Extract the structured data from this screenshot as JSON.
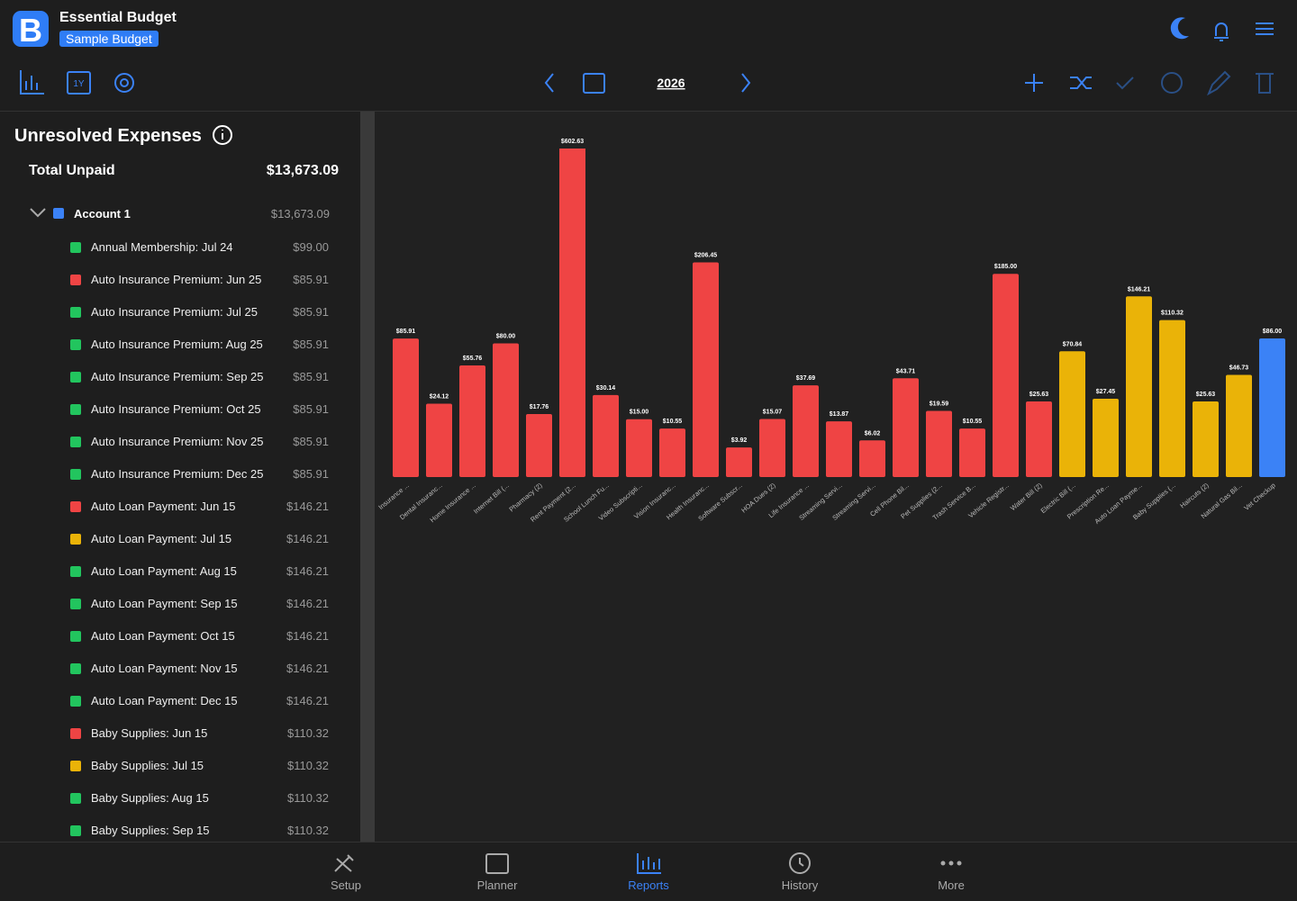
{
  "header": {
    "app_title": "Essential Budget",
    "budget_name": "Sample Budget"
  },
  "toolbar": {
    "range_label": "1Y",
    "year": "2026"
  },
  "sidebar": {
    "title": "Unresolved Expenses",
    "total_label": "Total Unpaid",
    "total_amount": "$13,673.09",
    "account": {
      "name": "Account 1",
      "amount": "$13,673.09"
    },
    "items": [
      {
        "name": "Annual Membership: Jul 24",
        "amount": "$99.00",
        "color": "#22c55e"
      },
      {
        "name": "Auto Insurance Premium: Jun 25",
        "amount": "$85.91",
        "color": "#ef4444"
      },
      {
        "name": "Auto Insurance Premium: Jul 25",
        "amount": "$85.91",
        "color": "#22c55e"
      },
      {
        "name": "Auto Insurance Premium: Aug 25",
        "amount": "$85.91",
        "color": "#22c55e"
      },
      {
        "name": "Auto Insurance Premium: Sep 25",
        "amount": "$85.91",
        "color": "#22c55e"
      },
      {
        "name": "Auto Insurance Premium: Oct 25",
        "amount": "$85.91",
        "color": "#22c55e"
      },
      {
        "name": "Auto Insurance Premium: Nov 25",
        "amount": "$85.91",
        "color": "#22c55e"
      },
      {
        "name": "Auto Insurance Premium: Dec 25",
        "amount": "$85.91",
        "color": "#22c55e"
      },
      {
        "name": "Auto Loan Payment: Jun 15",
        "amount": "$146.21",
        "color": "#ef4444"
      },
      {
        "name": "Auto Loan Payment: Jul 15",
        "amount": "$146.21",
        "color": "#eab308"
      },
      {
        "name": "Auto Loan Payment: Aug 15",
        "amount": "$146.21",
        "color": "#22c55e"
      },
      {
        "name": "Auto Loan Payment: Sep 15",
        "amount": "$146.21",
        "color": "#22c55e"
      },
      {
        "name": "Auto Loan Payment: Oct 15",
        "amount": "$146.21",
        "color": "#22c55e"
      },
      {
        "name": "Auto Loan Payment: Nov 15",
        "amount": "$146.21",
        "color": "#22c55e"
      },
      {
        "name": "Auto Loan Payment: Dec 15",
        "amount": "$146.21",
        "color": "#22c55e"
      },
      {
        "name": "Baby Supplies: Jun 15",
        "amount": "$110.32",
        "color": "#ef4444"
      },
      {
        "name": "Baby Supplies: Jul 15",
        "amount": "$110.32",
        "color": "#eab308"
      },
      {
        "name": "Baby Supplies: Aug 15",
        "amount": "$110.32",
        "color": "#22c55e"
      },
      {
        "name": "Baby Supplies: Sep 15",
        "amount": "$110.32",
        "color": "#22c55e"
      }
    ]
  },
  "chart_data": {
    "type": "bar",
    "scale": "sqrt",
    "categories": [
      "Insurance ...",
      "Dental Insuranc...",
      "Home Insurance ...",
      "Internet Bill (...",
      "Pharmacy (2)",
      "Rent Payment (2...",
      "School Lunch Fu...",
      "Video Subscripti...",
      "Vision Insuranc...",
      "Health Insuranc...",
      "Software Subscr...",
      "HOA Dues (2)",
      "Life Insurance ...",
      "Streaming Servi...",
      "Streaming Servi...",
      "Cell Phone Bil...",
      "Pet Supplies (2...",
      "Trash Service B...",
      "Vehicle Registr...",
      "Water Bill (2)",
      "Electric Bill (...",
      "Prescription Re...",
      "Auto Loan Payme...",
      "Baby Supplies (...",
      "Haircuts (2)",
      "Natural Gas Bil...",
      "Vet Checkup"
    ],
    "values": [
      85.91,
      24.12,
      55.76,
      80.0,
      17.76,
      602.63,
      30.14,
      15.0,
      10.55,
      206.45,
      3.92,
      15.07,
      37.69,
      13.87,
      6.02,
      43.71,
      19.59,
      10.55,
      185.0,
      25.63,
      70.84,
      27.45,
      146.21,
      110.32,
      25.63,
      46.73,
      86.0
    ],
    "value_labels": [
      "$85.91",
      "$24.12",
      "$55.76",
      "$80.00",
      "$17.76",
      "$602.63",
      "$30.14",
      "$15.00",
      "$10.55",
      "$206.45",
      "$3.92",
      "$15.07",
      "$37.69",
      "$13.87",
      "$6.02",
      "$43.71",
      "$19.59",
      "$10.55",
      "$185.00",
      "$25.63",
      "$70.84",
      "$27.45",
      "$146.21",
      "$110.32",
      "$25.63",
      "$46.73",
      "$86.00"
    ],
    "colors": [
      "#ef4444",
      "#ef4444",
      "#ef4444",
      "#ef4444",
      "#ef4444",
      "#ef4444",
      "#ef4444",
      "#ef4444",
      "#ef4444",
      "#ef4444",
      "#ef4444",
      "#ef4444",
      "#ef4444",
      "#ef4444",
      "#ef4444",
      "#ef4444",
      "#ef4444",
      "#ef4444",
      "#ef4444",
      "#ef4444",
      "#eab308",
      "#eab308",
      "#eab308",
      "#eab308",
      "#eab308",
      "#eab308",
      "#3b82f6"
    ]
  },
  "nav": {
    "items": [
      "Setup",
      "Planner",
      "Reports",
      "History",
      "More"
    ],
    "active": 2
  }
}
